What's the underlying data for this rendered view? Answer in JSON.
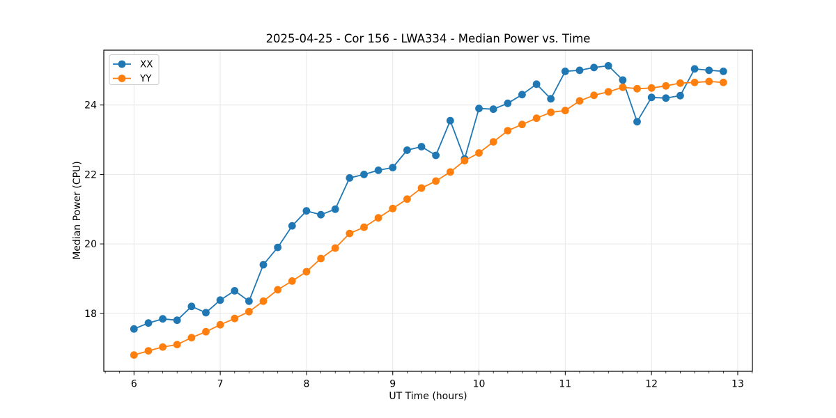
{
  "chart_data": {
    "type": "line",
    "title": "2025-04-25 - Cor 156 - LWA334 - Median Power vs. Time",
    "xlabel": "UT Time (hours)",
    "ylabel": "Median Power (CPU)",
    "xlim": [
      5.65,
      13.17
    ],
    "ylim": [
      16.33,
      25.58
    ],
    "xticks": [
      6,
      7,
      8,
      9,
      10,
      11,
      12,
      13
    ],
    "yticks": [
      18,
      20,
      22,
      24
    ],
    "x_minor_tick_step": 0.16667,
    "grid": true,
    "legend_position": "upper-left",
    "colors": {
      "xx": "#1f77b4",
      "yy": "#ff7f0e",
      "grid": "#e7e7e7",
      "axis": "#000000",
      "legend_border": "#cccccc"
    },
    "x": [
      6.0,
      6.167,
      6.333,
      6.5,
      6.667,
      6.833,
      7.0,
      7.167,
      7.333,
      7.5,
      7.667,
      7.833,
      8.0,
      8.167,
      8.333,
      8.5,
      8.667,
      8.833,
      9.0,
      9.167,
      9.333,
      9.5,
      9.667,
      9.833,
      10.0,
      10.167,
      10.333,
      10.5,
      10.667,
      10.833,
      11.0,
      11.167,
      11.333,
      11.5,
      11.667,
      11.833,
      12.0,
      12.167,
      12.333,
      12.5,
      12.667,
      12.833
    ],
    "series": [
      {
        "name": "XX",
        "color_key": "xx",
        "values": [
          17.55,
          17.72,
          17.84,
          17.8,
          18.2,
          18.02,
          18.38,
          18.65,
          18.35,
          19.4,
          19.9,
          20.52,
          20.95,
          20.84,
          21.0,
          21.9,
          22.0,
          22.12,
          22.2,
          22.7,
          22.8,
          22.55,
          23.55,
          22.45,
          23.9,
          23.88,
          24.05,
          24.3,
          24.6,
          24.18,
          24.97,
          25.0,
          25.08,
          25.13,
          24.72,
          23.52,
          24.22,
          24.2,
          24.27,
          25.04,
          25.0,
          24.97
        ]
      },
      {
        "name": "YY",
        "color_key": "yy",
        "values": [
          16.8,
          16.92,
          17.03,
          17.1,
          17.3,
          17.47,
          17.67,
          17.85,
          18.05,
          18.35,
          18.68,
          18.93,
          19.2,
          19.58,
          19.88,
          20.3,
          20.48,
          20.75,
          21.02,
          21.29,
          21.61,
          21.81,
          22.07,
          22.4,
          22.62,
          22.94,
          23.26,
          23.44,
          23.62,
          23.79,
          23.84,
          24.12,
          24.28,
          24.38,
          24.51,
          24.47,
          24.49,
          24.55,
          24.63,
          24.65,
          24.68,
          24.65
        ]
      }
    ]
  }
}
